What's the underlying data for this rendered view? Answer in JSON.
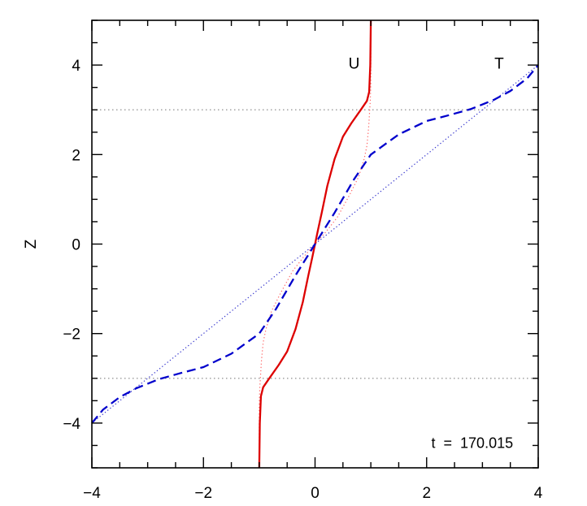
{
  "chart_data": {
    "type": "line",
    "title": "",
    "xlabel": "",
    "ylabel": "Z",
    "xlim": [
      -4,
      4
    ],
    "ylim": [
      -5,
      5
    ],
    "x_ticks": [
      -4,
      -2,
      0,
      2,
      4
    ],
    "x_tick_labels": [
      "−4",
      "−2",
      "0",
      "2",
      "4"
    ],
    "y_ticks": [
      -4,
      -2,
      0,
      2,
      4
    ],
    "y_tick_labels": [
      "−4",
      "−2",
      "0",
      "2",
      "4"
    ],
    "grid": false,
    "reference_lines": [
      {
        "orientation": "horizontal",
        "z": 3,
        "color": "#999999",
        "style": "dotted"
      },
      {
        "orientation": "horizontal",
        "z": -3,
        "color": "#999999",
        "style": "dotted"
      }
    ],
    "curve_labels": [
      {
        "text": "U",
        "x": 0.7,
        "z": 4.05
      },
      {
        "text": "T",
        "x": 3.3,
        "z": 4.05
      }
    ],
    "annotation": {
      "text": "t  =  170.015",
      "x": 3.55,
      "z": -4.45
    },
    "series": [
      {
        "key": "U_initial",
        "color": "#ff6666",
        "style": "dotted",
        "points": [
          [
            -1.0,
            -5.0
          ],
          [
            -1.0,
            -3.6
          ],
          [
            -0.99,
            -3.2
          ],
          [
            -0.98,
            -3.0
          ],
          [
            -0.96,
            -2.6
          ],
          [
            -0.93,
            -2.2
          ],
          [
            -0.88,
            -1.9
          ],
          [
            -0.78,
            -1.5
          ],
          [
            -0.62,
            -1.1
          ],
          [
            -0.4,
            -0.6
          ],
          [
            -0.2,
            -0.28
          ],
          [
            0.0,
            0.0
          ],
          [
            0.2,
            0.28
          ],
          [
            0.4,
            0.6
          ],
          [
            0.62,
            1.1
          ],
          [
            0.78,
            1.5
          ],
          [
            0.88,
            1.9
          ],
          [
            0.93,
            2.2
          ],
          [
            0.96,
            2.6
          ],
          [
            0.98,
            3.0
          ],
          [
            0.99,
            3.2
          ],
          [
            1.0,
            3.6
          ],
          [
            1.0,
            5.0
          ]
        ]
      },
      {
        "key": "T_initial",
        "color": "#3333cc",
        "style": "dotted",
        "points": [
          [
            -4.0,
            -4.0
          ],
          [
            4.0,
            4.0
          ]
        ]
      },
      {
        "key": "U",
        "color": "#dd0000",
        "style": "solid",
        "points": [
          [
            -1.0,
            -5.0
          ],
          [
            -0.99,
            -4.0
          ],
          [
            -0.97,
            -3.4
          ],
          [
            -0.93,
            -3.2
          ],
          [
            -0.82,
            -3.0
          ],
          [
            -0.65,
            -2.7
          ],
          [
            -0.5,
            -2.4
          ],
          [
            -0.35,
            -1.9
          ],
          [
            -0.22,
            -1.3
          ],
          [
            -0.12,
            -0.7
          ],
          [
            -0.05,
            -0.3
          ],
          [
            0.0,
            0.0
          ],
          [
            0.05,
            0.3
          ],
          [
            0.12,
            0.7
          ],
          [
            0.22,
            1.3
          ],
          [
            0.35,
            1.9
          ],
          [
            0.5,
            2.4
          ],
          [
            0.65,
            2.7
          ],
          [
            0.82,
            3.0
          ],
          [
            0.93,
            3.2
          ],
          [
            0.97,
            3.4
          ],
          [
            0.99,
            4.0
          ],
          [
            1.0,
            5.0
          ]
        ]
      },
      {
        "key": "T",
        "color": "#0000cc",
        "style": "dashed",
        "points": [
          [
            -4.0,
            -4.0
          ],
          [
            -3.8,
            -3.7
          ],
          [
            -3.5,
            -3.42
          ],
          [
            -3.2,
            -3.22
          ],
          [
            -2.8,
            -3.02
          ],
          [
            -2.4,
            -2.88
          ],
          [
            -2.0,
            -2.75
          ],
          [
            -1.5,
            -2.45
          ],
          [
            -1.0,
            -2.0
          ],
          [
            -0.7,
            -1.45
          ],
          [
            -0.35,
            -0.7
          ],
          [
            0.0,
            0.0
          ],
          [
            0.35,
            0.7
          ],
          [
            0.7,
            1.45
          ],
          [
            1.0,
            2.0
          ],
          [
            1.5,
            2.45
          ],
          [
            2.0,
            2.75
          ],
          [
            2.4,
            2.88
          ],
          [
            2.8,
            3.02
          ],
          [
            3.2,
            3.22
          ],
          [
            3.5,
            3.42
          ],
          [
            3.8,
            3.7
          ],
          [
            4.0,
            4.0
          ]
        ]
      }
    ]
  }
}
